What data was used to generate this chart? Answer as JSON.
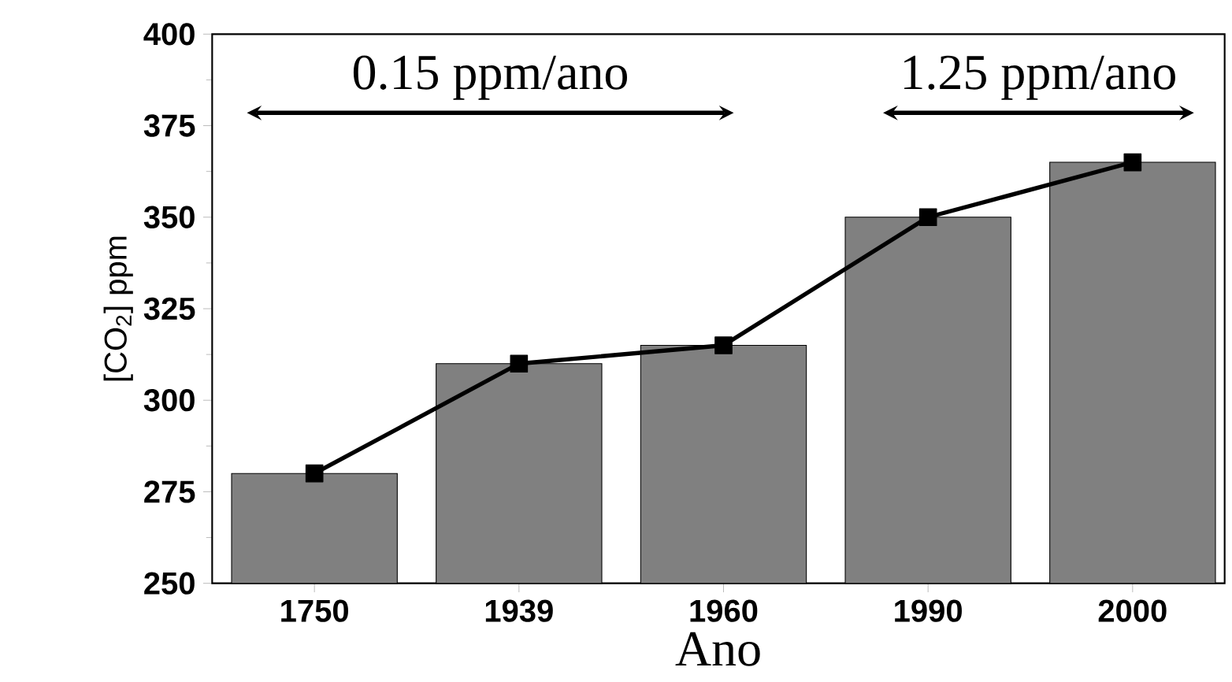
{
  "chart_data": {
    "type": "bar",
    "xlabel": "Ano",
    "ylabel": "[CO$_{2}$] ppm",
    "categories": [
      "1750",
      "1939",
      "1960",
      "1990",
      "2000"
    ],
    "series": [
      {
        "color": "#808080",
        "values": [
          280,
          310,
          315,
          350,
          365
        ]
      },
      {
        "type": "line",
        "color": "#000000",
        "values": [
          280,
          310,
          315,
          350,
          365
        ]
      }
    ],
    "marker": "square",
    "ylim": [
      250,
      400
    ],
    "yticks": [
      250,
      275,
      300,
      325,
      350,
      375,
      400
    ],
    "grid": false,
    "annotations": [
      "0.15 ppm/ano",
      "1.25 ppm/ano"
    ]
  }
}
